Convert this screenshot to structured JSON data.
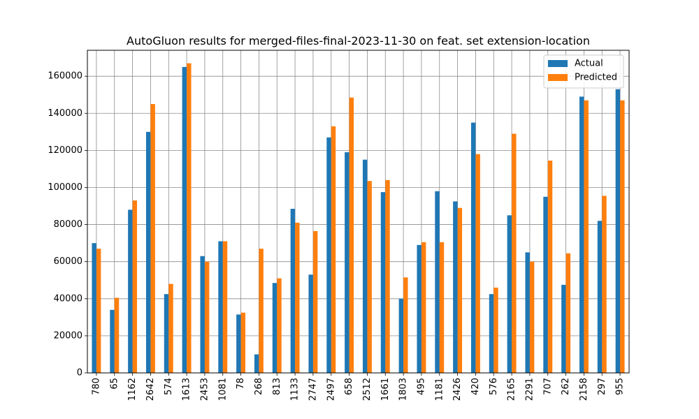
{
  "chart_data": {
    "type": "bar",
    "title": "AutoGluon results for merged-files-final-2023-11-30 on feat. set extension-location",
    "xlabel": "",
    "ylabel": "",
    "ylim": [
      0,
      174000
    ],
    "yticks": [
      0,
      20000,
      40000,
      60000,
      80000,
      100000,
      120000,
      140000,
      160000
    ],
    "grid": true,
    "legend_position": "top-right",
    "categories": [
      "780",
      "65",
      "1162",
      "2642",
      "574",
      "1613",
      "2453",
      "1081",
      "78",
      "268",
      "813",
      "1133",
      "2747",
      "2497",
      "658",
      "2512",
      "1661",
      "1803",
      "495",
      "1181",
      "2426",
      "420",
      "576",
      "2165",
      "2291",
      "707",
      "262",
      "2158",
      "297",
      "955"
    ],
    "series": [
      {
        "name": "Actual",
        "color": "#1f77b4",
        "values": [
          70000,
          34000,
          88000,
          130000,
          42500,
          165000,
          63000,
          71000,
          31500,
          10000,
          48500,
          88500,
          53000,
          127000,
          119000,
          115000,
          97500,
          40000,
          69000,
          98000,
          92500,
          135000,
          42500,
          85000,
          65000,
          95000,
          47500,
          149000,
          82000,
          153000
        ]
      },
      {
        "name": "Predicted",
        "color": "#ff7f0e",
        "values": [
          67000,
          40500,
          93000,
          145000,
          48000,
          167000,
          60000,
          71000,
          32500,
          67000,
          51000,
          81000,
          76500,
          133000,
          148500,
          103500,
          104000,
          51500,
          70500,
          70500,
          89000,
          118000,
          46000,
          129000,
          60000,
          114500,
          64500,
          147000,
          95500,
          147000
        ]
      }
    ]
  }
}
